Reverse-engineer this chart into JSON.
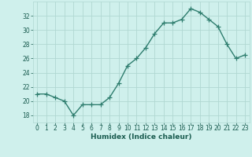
{
  "x": [
    0,
    1,
    2,
    3,
    4,
    5,
    6,
    7,
    8,
    9,
    10,
    11,
    12,
    13,
    14,
    15,
    16,
    17,
    18,
    19,
    20,
    21,
    22,
    23
  ],
  "y": [
    21,
    21,
    20.5,
    20,
    18,
    19.5,
    19.5,
    19.5,
    20.5,
    22.5,
    25,
    26,
    27.5,
    29.5,
    31,
    31,
    31.5,
    33,
    32.5,
    31.5,
    30.5,
    28,
    26,
    26.5
  ],
  "line_color": "#2e7d6e",
  "marker": "+",
  "marker_size": 4,
  "bg_color": "#cff0ec",
  "grid_color": "#b0d8d2",
  "xlabel": "Humidex (Indice chaleur)",
  "ylim": [
    17,
    34
  ],
  "yticks": [
    18,
    20,
    22,
    24,
    26,
    28,
    30,
    32
  ],
  "xticks": [
    0,
    1,
    2,
    3,
    4,
    5,
    6,
    7,
    8,
    9,
    10,
    11,
    12,
    13,
    14,
    15,
    16,
    17,
    18,
    19,
    20,
    21,
    22,
    23
  ],
  "title_color": "#1a5c50",
  "font_size_label": 6.5,
  "font_size_tick": 5.5,
  "line_width": 1.0,
  "marker_edge_width": 0.9
}
